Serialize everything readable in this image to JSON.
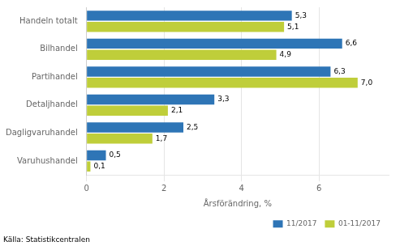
{
  "chart_data": {
    "type": "bar",
    "orientation": "horizontal",
    "categories": [
      "Varuhushandel",
      "Dagligvaruhandel",
      "Detaljhandel",
      "Partihandel",
      "Bilhandel",
      "Handeln totalt"
    ],
    "series": [
      {
        "name": "11/2017",
        "color": "#2E75B6",
        "values": [
          0.5,
          2.5,
          3.3,
          6.3,
          6.6,
          5.3
        ],
        "value_labels": [
          "0,5",
          "2,5",
          "3,3",
          "6,3",
          "6,6",
          "5,3"
        ]
      },
      {
        "name": "01-11/2017",
        "color": "#BFCE3A",
        "values": [
          0.1,
          1.7,
          2.1,
          7.0,
          4.9,
          5.1
        ],
        "value_labels": [
          "0,1",
          "1,7",
          "2,1",
          "7,0",
          "4,9",
          "5,1"
        ]
      }
    ],
    "xlabel": "Årsförändring, %",
    "xlim": [
      0,
      7.8
    ],
    "xticks": [
      0,
      2,
      4,
      6
    ],
    "grid": true,
    "legend": "lower right",
    "data_labels": true,
    "annotations": [
      "Källa: Statistikcentralen"
    ]
  }
}
